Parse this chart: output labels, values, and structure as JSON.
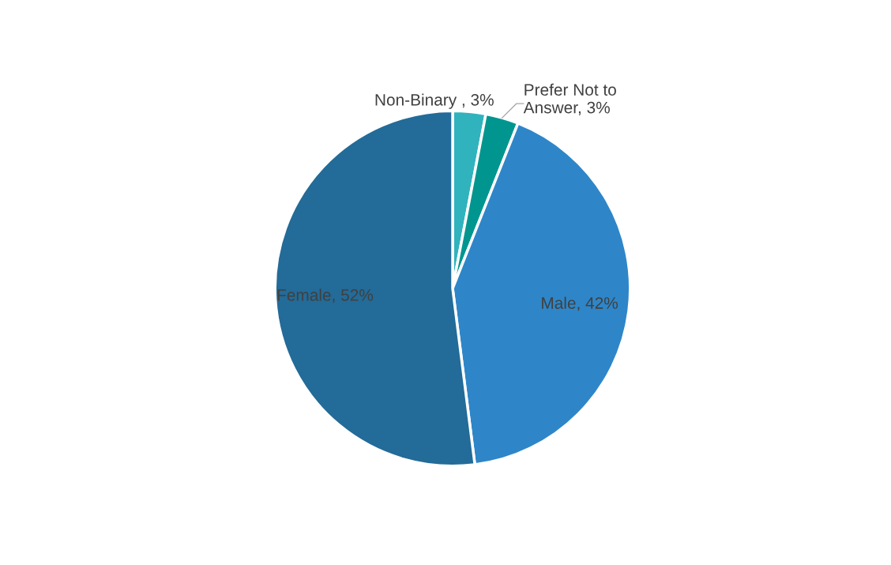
{
  "chart_data": {
    "type": "pie",
    "categories": [
      "Non-Binary ",
      "Prefer Not to\nAnswer",
      "Male",
      "Female"
    ],
    "values": [
      3,
      3,
      42,
      52
    ],
    "value_labels": [
      "3%",
      "3%",
      "42%",
      "52%"
    ],
    "colors": [
      "#31b3bd",
      "#00968f",
      "#2e86c8",
      "#236b98"
    ],
    "legend": false
  }
}
